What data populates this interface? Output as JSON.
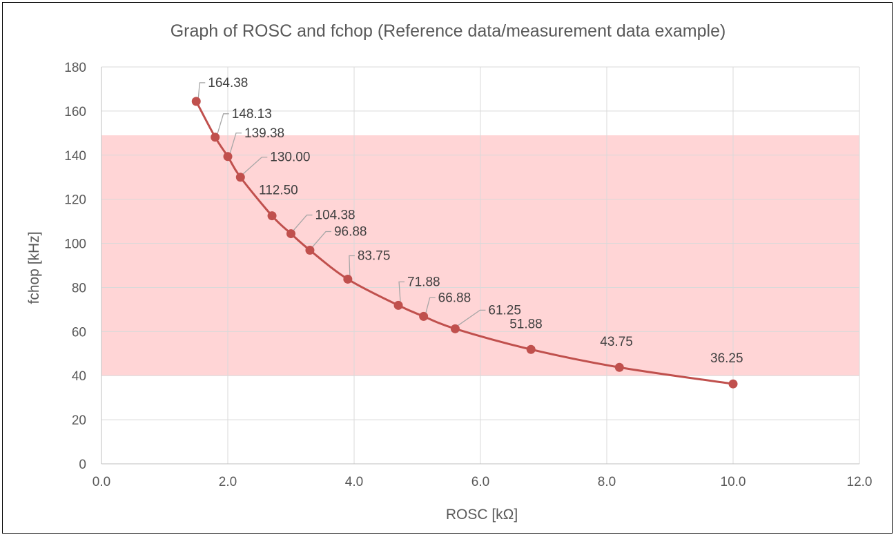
{
  "chart_data": {
    "type": "scatter",
    "title": "Graph of ROSC and fchop (Reference data/measurement data example)",
    "xlabel": "ROSC [kΩ]",
    "ylabel": "fchop [kHz]",
    "xlim": [
      0,
      12
    ],
    "ylim": [
      0,
      180
    ],
    "x_ticks": [
      "0.0",
      "2.0",
      "4.0",
      "6.0",
      "8.0",
      "10.0",
      "12.0"
    ],
    "y_ticks": [
      "0",
      "20",
      "40",
      "60",
      "80",
      "100",
      "120",
      "140",
      "160",
      "180"
    ],
    "grid": true,
    "smooth_line": true,
    "series_color": "#c0504d",
    "shaded_band": {
      "y_from": 40,
      "y_to": 149,
      "color": "#ffd5d6"
    },
    "points": [
      {
        "x": 1.5,
        "y": 164.38,
        "label": "164.38"
      },
      {
        "x": 1.8,
        "y": 148.13,
        "label": "148.13"
      },
      {
        "x": 2.0,
        "y": 139.38,
        "label": "139.38"
      },
      {
        "x": 2.2,
        "y": 130.0,
        "label": "130.00"
      },
      {
        "x": 2.7,
        "y": 112.5,
        "label": "112.50"
      },
      {
        "x": 3.0,
        "y": 104.38,
        "label": "104.38"
      },
      {
        "x": 3.3,
        "y": 96.88,
        "label": "96.88"
      },
      {
        "x": 3.9,
        "y": 83.75,
        "label": "83.75"
      },
      {
        "x": 4.7,
        "y": 71.88,
        "label": "71.88"
      },
      {
        "x": 5.1,
        "y": 66.88,
        "label": "66.88"
      },
      {
        "x": 5.6,
        "y": 61.25,
        "label": "61.25"
      },
      {
        "x": 6.8,
        "y": 51.88,
        "label": "51.88"
      },
      {
        "x": 8.2,
        "y": 43.75,
        "label": "43.75"
      },
      {
        "x": 10.0,
        "y": 36.25,
        "label": "36.25"
      }
    ]
  }
}
